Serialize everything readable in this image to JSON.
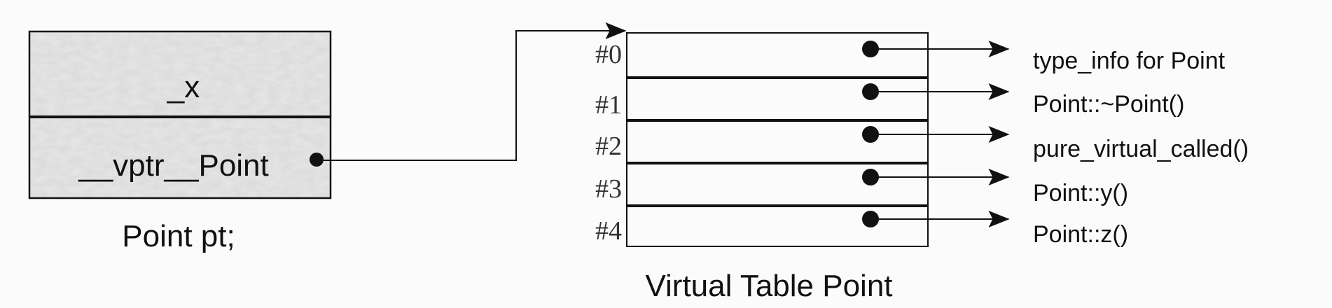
{
  "object": {
    "fields": [
      "_x",
      "__vptr__Point"
    ],
    "caption": "Point pt;"
  },
  "vtable": {
    "slot_indices": [
      "#0",
      "#1",
      "#2",
      "#3",
      "#4"
    ],
    "caption": "Virtual Table Point"
  },
  "targets": [
    "type_info for Point",
    "Point::~Point()",
    "pure_virtual_called()",
    "Point::y()",
    "Point::z()"
  ],
  "colors": {
    "background": "#fbfbfb",
    "ink": "#111111",
    "index_text": "#333333",
    "texture_fill": "#dadada"
  }
}
